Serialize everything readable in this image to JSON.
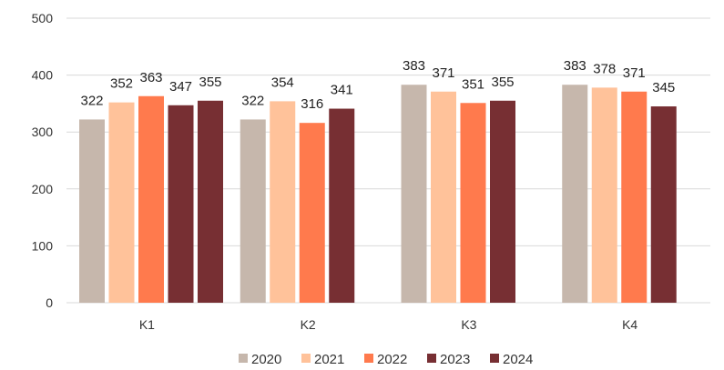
{
  "chart_data": {
    "type": "bar",
    "categories": [
      "K1",
      "K2",
      "K3",
      "K4"
    ],
    "series": [
      {
        "name": "2020",
        "color": "#c6b7ac",
        "values": [
          322,
          322,
          383,
          383
        ]
      },
      {
        "name": "2021",
        "color": "#ffc29a",
        "values": [
          352,
          354,
          371,
          378
        ]
      },
      {
        "name": "2022",
        "color": "#ff7a4d",
        "values": [
          363,
          316,
          351,
          371
        ]
      },
      {
        "name": "2023",
        "color": "#772f33",
        "values": [
          347,
          341,
          355,
          345
        ]
      },
      {
        "name": "2024",
        "color": "#772f33",
        "values": [
          355,
          null,
          null,
          null
        ]
      }
    ],
    "yticks": [
      "0",
      "100",
      "200",
      "300",
      "400",
      "500"
    ],
    "ylim": [
      0,
      500
    ],
    "grid": true,
    "legend_position": "bottom"
  }
}
